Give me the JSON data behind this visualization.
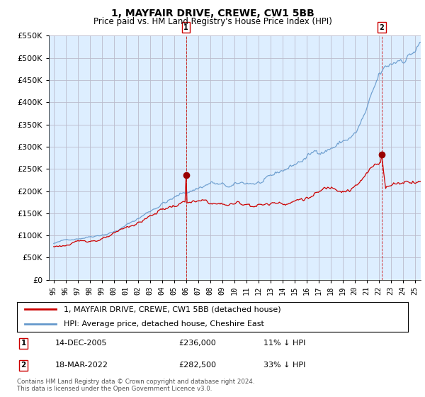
{
  "title": "1, MAYFAIR DRIVE, CREWE, CW1 5BB",
  "subtitle": "Price paid vs. HM Land Registry's House Price Index (HPI)",
  "legend_line1": "1, MAYFAIR DRIVE, CREWE, CW1 5BB (detached house)",
  "legend_line2": "HPI: Average price, detached house, Cheshire East",
  "footer": "Contains HM Land Registry data © Crown copyright and database right 2024.\nThis data is licensed under the Open Government Licence v3.0.",
  "sale1_label": "1",
  "sale1_date": "14-DEC-2005",
  "sale1_price": "£236,000",
  "sale1_hpi": "11% ↓ HPI",
  "sale1_x": 2006.0,
  "sale1_y": 236000,
  "sale2_label": "2",
  "sale2_date": "18-MAR-2022",
  "sale2_price": "£282,500",
  "sale2_hpi": "33% ↓ HPI",
  "sale2_x": 2022.25,
  "sale2_y": 282500,
  "ylim": [
    0,
    550000
  ],
  "yticks": [
    0,
    50000,
    100000,
    150000,
    200000,
    250000,
    300000,
    350000,
    400000,
    450000,
    500000,
    550000
  ],
  "xlim_start": 1995.0,
  "xlim_end": 2025.5,
  "price_line_color": "#cc0000",
  "hpi_line_color": "#6699cc",
  "chart_bg_color": "#ddeeff",
  "marker_color": "#990000",
  "vline_color": "#cc0000",
  "grid_color": "#bbbbcc",
  "bg_color": "#ffffff",
  "xtick_years": [
    1995,
    1996,
    1997,
    1998,
    1999,
    2000,
    2001,
    2002,
    2003,
    2004,
    2005,
    2006,
    2007,
    2008,
    2009,
    2010,
    2011,
    2012,
    2013,
    2014,
    2015,
    2016,
    2017,
    2018,
    2019,
    2020,
    2021,
    2022,
    2023,
    2024,
    2025
  ],
  "xtick_labels": [
    "95",
    "96",
    "97",
    "98",
    "99",
    "00",
    "01",
    "02",
    "03",
    "04",
    "05",
    "06",
    "07",
    "08",
    "09",
    "10",
    "11",
    "12",
    "13",
    "14",
    "15",
    "16",
    "17",
    "18",
    "19",
    "20",
    "21",
    "22",
    "23",
    "24",
    "25"
  ]
}
